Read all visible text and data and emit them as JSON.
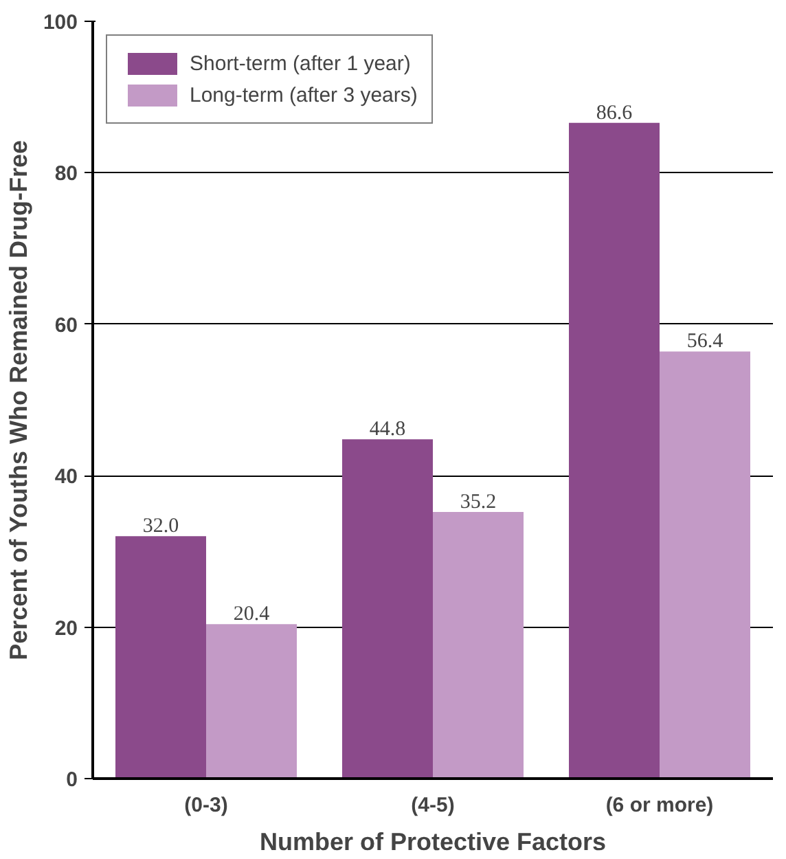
{
  "chart_data": {
    "type": "bar",
    "xlabel": "Number of Protective Factors",
    "ylabel": "Percent of Youths Who Remained Drug-Free",
    "categories": [
      "(0-3)",
      "(4-5)",
      "(6 or more)"
    ],
    "series": [
      {
        "name": "Short-term (after 1 year)",
        "color": "#8b4a8b",
        "values": [
          32.0,
          44.8,
          86.6
        ],
        "value_labels": [
          "32.0",
          "44.8",
          "86.6"
        ]
      },
      {
        "name": "Long-term (after 3 years)",
        "color": "#c39ac6",
        "values": [
          20.4,
          35.2,
          56.4
        ],
        "value_labels": [
          "20.4",
          "35.2",
          "56.4"
        ]
      }
    ],
    "ylim": [
      0,
      100
    ],
    "yticks": [
      0,
      20,
      40,
      60,
      80,
      100
    ],
    "grid": "y",
    "legend": "top left"
  }
}
